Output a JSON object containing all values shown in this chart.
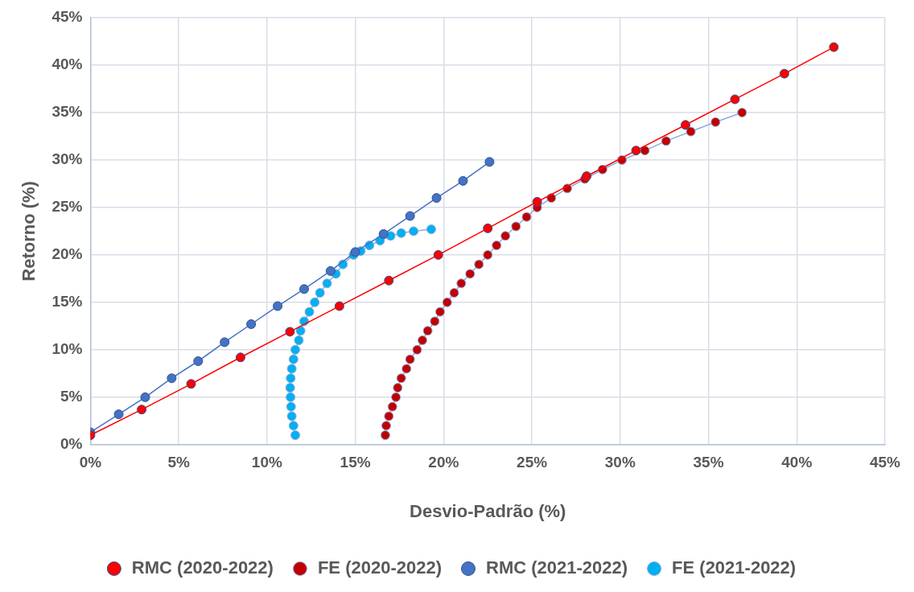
{
  "chart_data": {
    "type": "line",
    "xlabel": "Desvio-Padrão (%)",
    "ylabel": "Retorno (%)",
    "xlim": [
      0,
      45
    ],
    "ylim": [
      0,
      45
    ],
    "xticks": [
      {
        "value": 0,
        "label": "0%"
      },
      {
        "value": 5,
        "label": "5%"
      },
      {
        "value": 10,
        "label": "10%"
      },
      {
        "value": 15,
        "label": "15%"
      },
      {
        "value": 20,
        "label": "20%"
      },
      {
        "value": 25,
        "label": "25%"
      },
      {
        "value": 30,
        "label": "30%"
      },
      {
        "value": 35,
        "label": "35%"
      },
      {
        "value": 40,
        "label": "40%"
      },
      {
        "value": 45,
        "label": "45%"
      }
    ],
    "yticks": [
      {
        "value": 0,
        "label": "0%"
      },
      {
        "value": 5,
        "label": "5%"
      },
      {
        "value": 10,
        "label": "10%"
      },
      {
        "value": 15,
        "label": "15%"
      },
      {
        "value": 20,
        "label": "20%"
      },
      {
        "value": 25,
        "label": "25%"
      },
      {
        "value": 30,
        "label": "30%"
      },
      {
        "value": 35,
        "label": "35%"
      },
      {
        "value": 40,
        "label": "40%"
      },
      {
        "value": 45,
        "label": "45%"
      }
    ],
    "grid": true,
    "legend": "bottom",
    "marker": "circle",
    "line_style": "solid",
    "series": [
      {
        "name": "RMC (2020-2022)",
        "color": "#ff0000",
        "x": [
          0,
          2.9,
          5.7,
          8.5,
          11.3,
          14.1,
          16.9,
          19.7,
          22.5,
          25.3,
          28.1,
          30.9,
          33.7,
          36.5,
          39.3,
          42.1
        ],
        "values": [
          1.0,
          3.7,
          6.4,
          9.2,
          11.9,
          14.6,
          17.3,
          20.0,
          22.8,
          25.6,
          28.3,
          31.0,
          33.7,
          36.4,
          39.1,
          41.9
        ]
      },
      {
        "name": "FE (2020-2022)",
        "color": "#c00000",
        "x": [
          16.7,
          16.75,
          16.9,
          17.1,
          17.3,
          17.4,
          17.6,
          17.9,
          18.1,
          18.5,
          18.8,
          19.1,
          19.5,
          19.8,
          20.2,
          20.6,
          21.0,
          21.5,
          22.0,
          22.5,
          23.0,
          23.5,
          24.1,
          24.7,
          25.3,
          26.1,
          27.0,
          28.0,
          29.0,
          30.1,
          31.4,
          32.6,
          34.0,
          35.4,
          36.9
        ],
        "values": [
          1,
          2,
          3,
          4,
          5,
          6,
          7,
          8,
          9,
          10,
          11,
          12,
          13,
          14,
          15,
          16,
          17,
          18,
          19,
          20,
          21,
          22,
          23,
          24,
          25,
          26,
          27,
          28,
          29,
          30,
          31,
          32,
          33,
          34,
          35
        ]
      },
      {
        "name": "RMC (2021-2022)",
        "color": "#4472c4",
        "x": [
          0,
          1.6,
          3.1,
          4.6,
          6.1,
          7.6,
          9.1,
          10.6,
          12.1,
          13.6,
          15.0,
          16.6,
          18.1,
          19.6,
          21.1,
          22.6
        ],
        "values": [
          1.3,
          3.2,
          5.0,
          7.0,
          8.8,
          10.8,
          12.7,
          14.6,
          16.4,
          18.3,
          20.3,
          22.2,
          24.1,
          26.0,
          27.8,
          29.8
        ]
      },
      {
        "name": "FE (2021-2022)",
        "color": "#00b0f0",
        "x": [
          11.6,
          11.5,
          11.4,
          11.36,
          11.33,
          11.31,
          11.34,
          11.4,
          11.5,
          11.6,
          11.8,
          11.9,
          12.1,
          12.4,
          12.7,
          13.0,
          13.4,
          13.9,
          14.3,
          14.9,
          15.3,
          15.8,
          16.4,
          17.0,
          17.6,
          18.3,
          19.3
        ],
        "values": [
          1,
          2,
          3,
          4,
          5,
          6,
          7,
          8,
          9,
          10,
          11,
          12,
          13,
          14,
          15,
          16,
          17,
          18,
          19,
          20,
          20.4,
          21.0,
          21.5,
          22.0,
          22.3,
          22.5,
          22.7
        ]
      }
    ]
  }
}
